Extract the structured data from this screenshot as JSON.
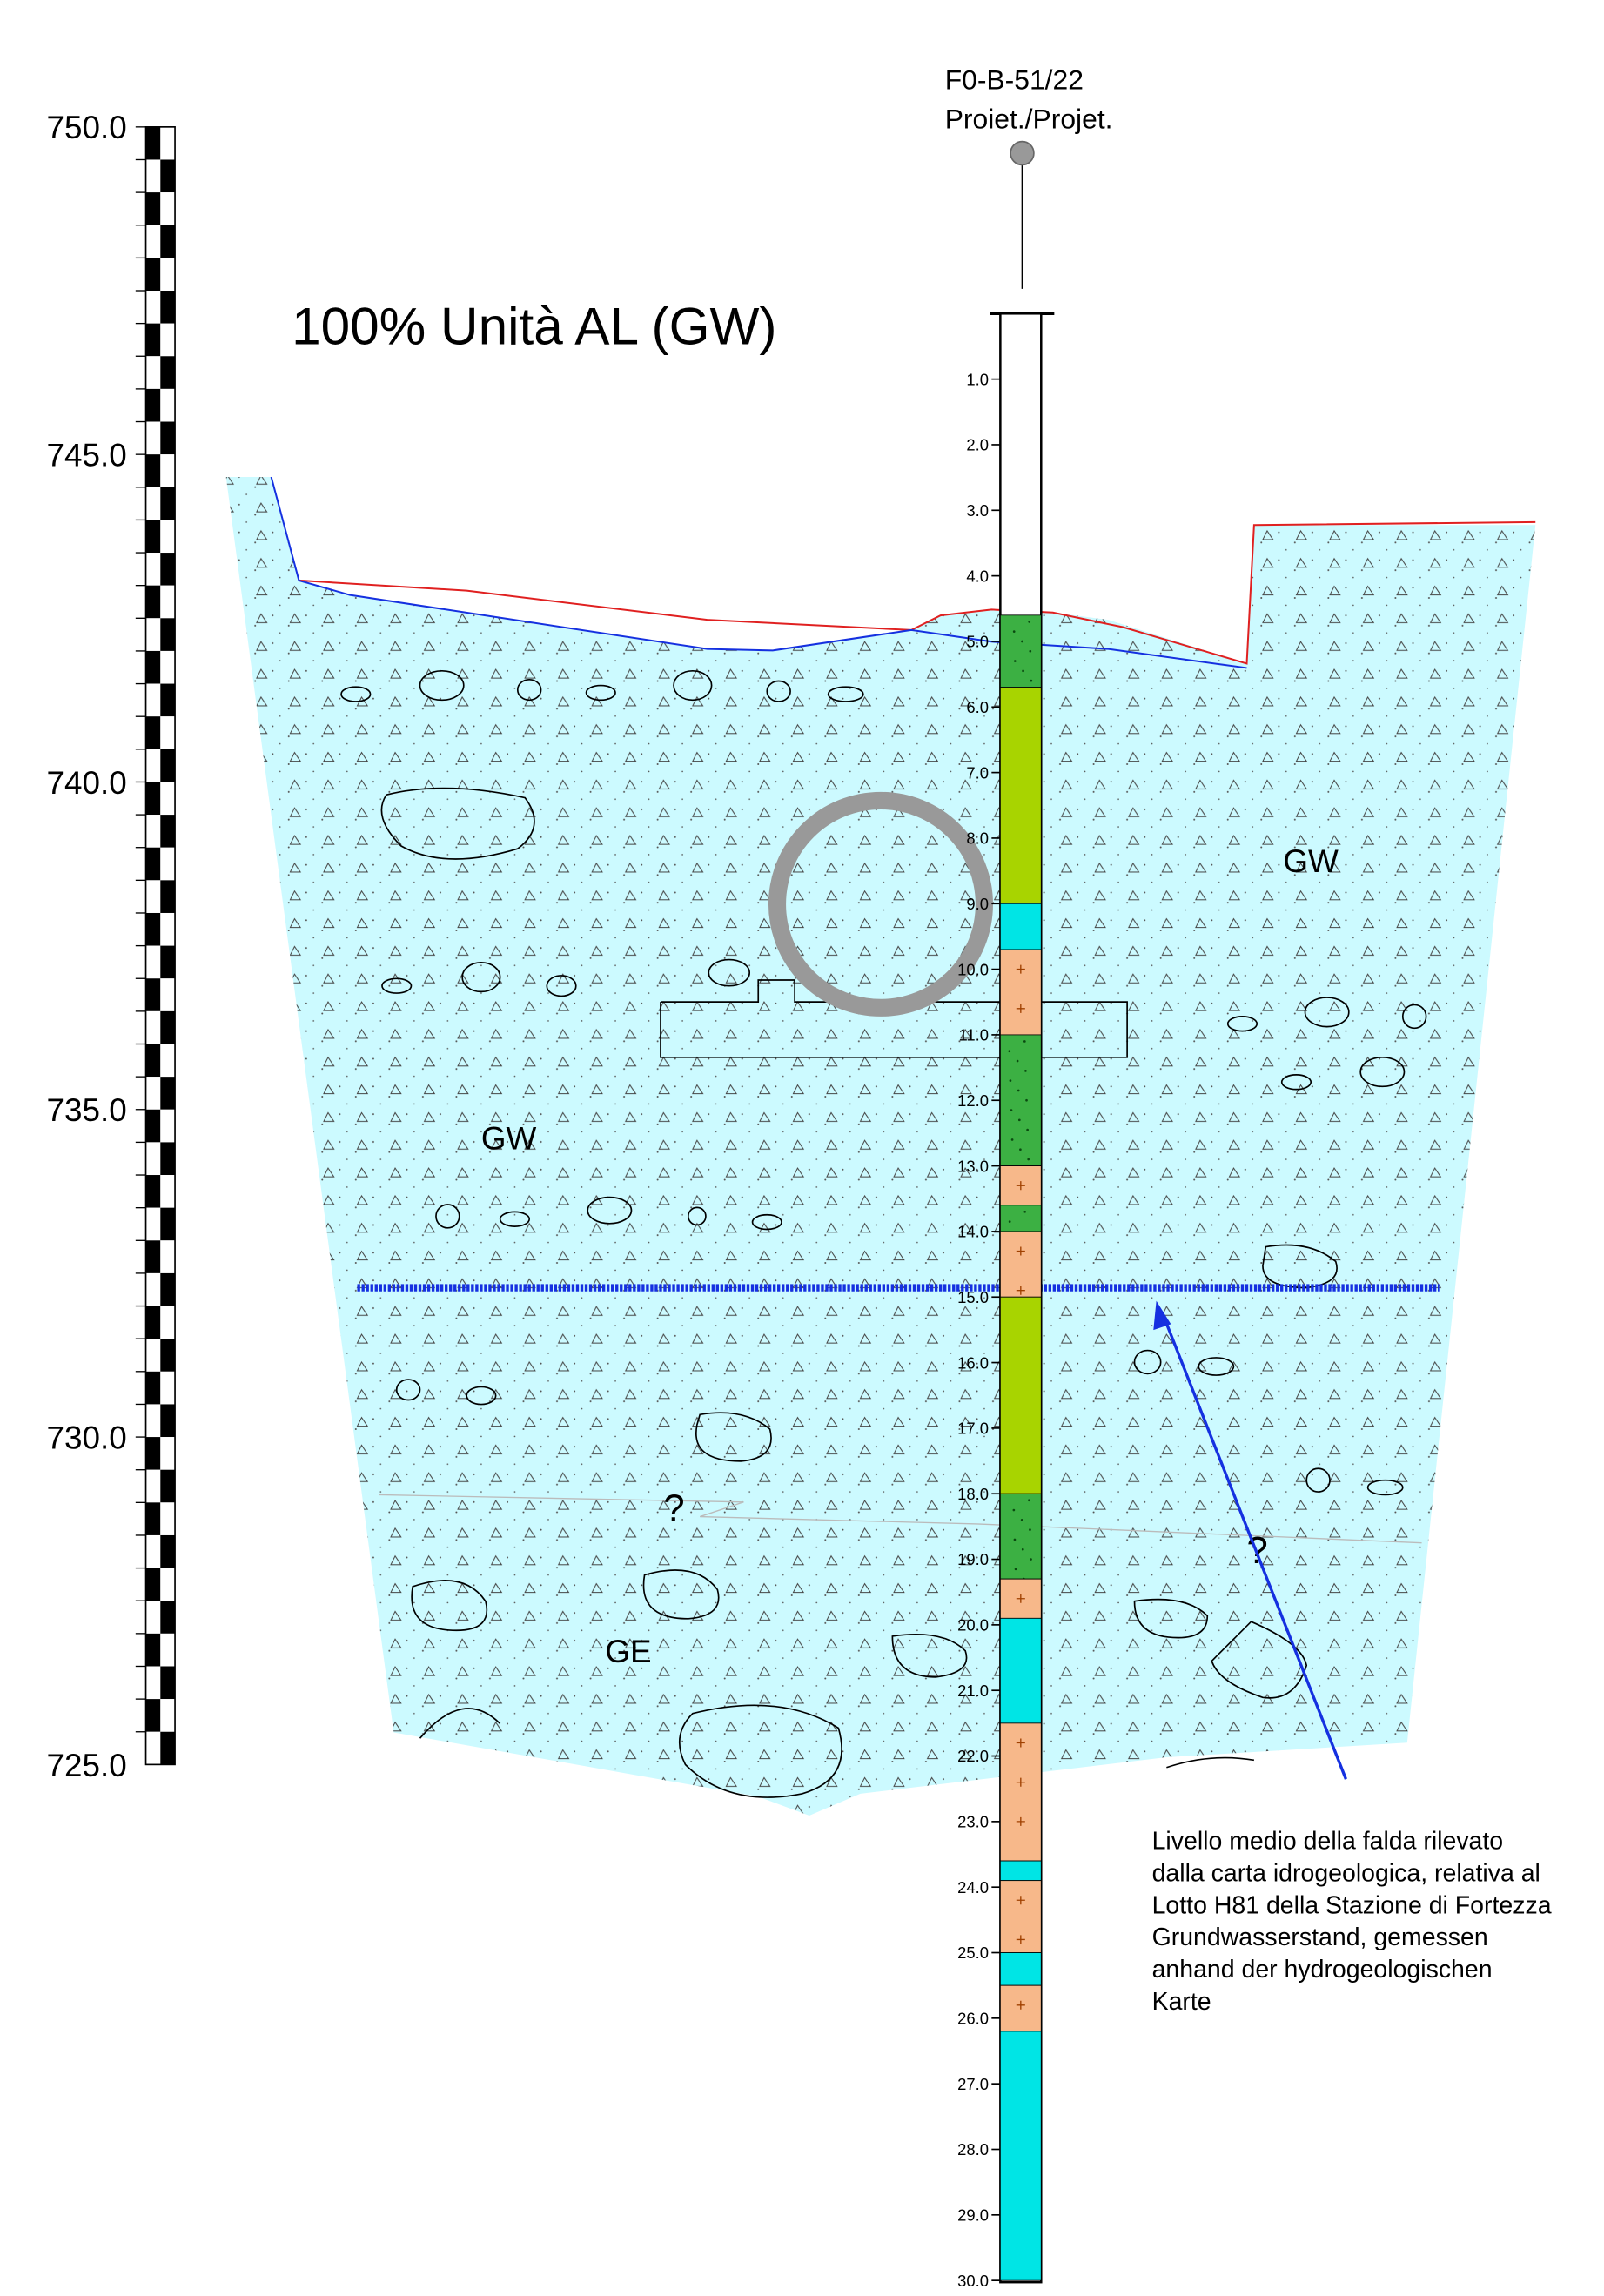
{
  "title": "100% Unità AL (GW)",
  "borehole": {
    "name": "F0-B-51/22",
    "label": "Proiet./Projet.",
    "depth_labels": [
      "1.0",
      "2.0",
      "3.0",
      "4.0",
      "5.0",
      "6.0",
      "7.0",
      "8.0",
      "9.0",
      "10.0",
      "11.0",
      "12.0",
      "13.0",
      "14.0",
      "15.0",
      "16.0",
      "17.0",
      "18.0",
      "19.0",
      "20.0",
      "21.0",
      "22.0",
      "23.0",
      "24.0",
      "25.0",
      "26.0",
      "27.0",
      "28.0",
      "29.0",
      "30.0"
    ]
  },
  "elevation_scale": {
    "labels": [
      "750.0",
      "745.0",
      "740.0",
      "735.0",
      "730.0",
      "725.0"
    ]
  },
  "units": [
    {
      "label": "GW"
    },
    {
      "label": "GW"
    },
    {
      "label": "GE"
    }
  ],
  "uncertainty_marks": [
    "?",
    "?"
  ],
  "note": {
    "lines": [
      "Livello medio della falda rilevato",
      "dalla carta idrogeologica, relativa al",
      "Lotto H81 della Stazione di Fortezza",
      "Grundwasserstand, gemessen",
      "anhand der hydrogeologischen",
      "Karte"
    ]
  }
}
